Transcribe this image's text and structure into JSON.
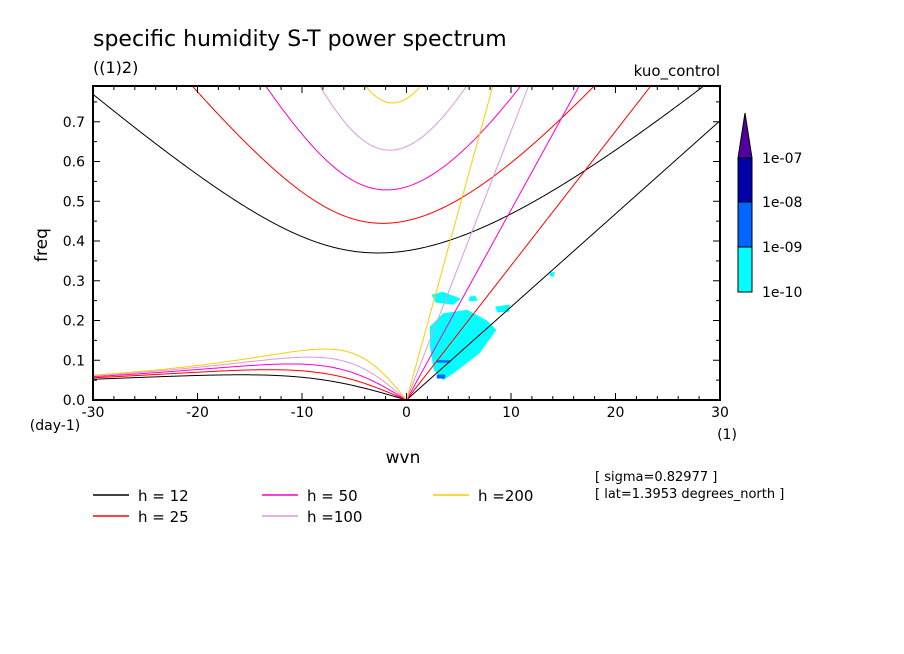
{
  "chart_data": {
    "type": "line",
    "title": "specific humidity S-T power spectrum",
    "subtitle": "((1)2)",
    "run_label": "kuo_control",
    "xlabel": "wvn",
    "xunit": "(1)",
    "ylabel": "freq",
    "yunit": "(day-1)",
    "xlim": [
      -30,
      30
    ],
    "ylim": [
      0,
      0.79
    ],
    "xticks": [
      -30,
      -20,
      -10,
      0,
      10,
      20,
      30
    ],
    "xtick_labels": [
      "-30",
      "-20",
      "-10",
      "0",
      "10",
      "20",
      "30"
    ],
    "yticks": [
      0,
      0.1,
      0.2,
      0.3,
      0.4,
      0.5,
      0.6,
      0.7
    ],
    "ytick_labels": [
      "0.0",
      "0.1",
      "0.2",
      "0.3",
      "0.4",
      "0.5",
      "0.6",
      "0.7"
    ],
    "dispersion_curves": [
      {
        "name": "h = 12",
        "h": 12,
        "color": "#000000"
      },
      {
        "name": "h = 25",
        "h": 25,
        "color": "#ff0000"
      },
      {
        "name": "h = 50",
        "h": 50,
        "color": "#ff00cc"
      },
      {
        "name": "h =100",
        "h": 100,
        "color": "#dd99dd"
      },
      {
        "name": "h =200",
        "h": 200,
        "color": "#ffcc00"
      }
    ],
    "shaded_levels": [
      {
        "label": "1e-10",
        "color": "#00ffff"
      },
      {
        "label": "1e-09",
        "color": "#0066ff"
      },
      {
        "label": "1e-08",
        "color": "#0000aa"
      },
      {
        "label": "1e-07",
        "color": "#5000a0"
      }
    ],
    "shaded_regions": [
      {
        "level": 0,
        "points": [
          [
            2.25,
            0.185
          ],
          [
            3.5,
            0.218
          ],
          [
            5.8,
            0.227
          ],
          [
            7.7,
            0.2
          ],
          [
            8.6,
            0.176
          ],
          [
            7.0,
            0.118
          ],
          [
            4.5,
            0.067
          ],
          [
            3.5,
            0.05
          ],
          [
            2.6,
            0.076
          ],
          [
            2.25,
            0.134
          ]
        ]
      },
      {
        "level": 0,
        "points": [
          [
            2.4,
            0.265
          ],
          [
            3.5,
            0.272
          ],
          [
            5.2,
            0.255
          ],
          [
            4.5,
            0.24
          ],
          [
            2.8,
            0.245
          ]
        ]
      },
      {
        "level": 0,
        "points": [
          [
            6.0,
            0.26
          ],
          [
            6.6,
            0.262
          ],
          [
            6.8,
            0.25
          ],
          [
            6.0,
            0.248
          ]
        ]
      },
      {
        "level": 0,
        "points": [
          [
            8.5,
            0.235
          ],
          [
            9.9,
            0.24
          ],
          [
            9.8,
            0.222
          ],
          [
            8.7,
            0.22
          ]
        ]
      },
      {
        "level": 0,
        "points": [
          [
            13.7,
            0.32
          ],
          [
            14.2,
            0.322
          ],
          [
            14.1,
            0.31
          ],
          [
            13.7,
            0.312
          ]
        ]
      },
      {
        "level": 1,
        "points": [
          [
            2.9,
            0.1
          ],
          [
            4.2,
            0.1
          ],
          [
            4.2,
            0.094
          ],
          [
            2.9,
            0.094
          ]
        ]
      },
      {
        "level": 1,
        "points": [
          [
            2.9,
            0.064
          ],
          [
            3.7,
            0.064
          ],
          [
            3.7,
            0.054
          ],
          [
            2.9,
            0.054
          ]
        ]
      }
    ],
    "grid": false,
    "legend_placement": "bottom"
  },
  "annotations": {
    "sigma": "[ sigma=0.82977 ]",
    "lat": "[ lat=1.3953 degrees_north ]"
  }
}
